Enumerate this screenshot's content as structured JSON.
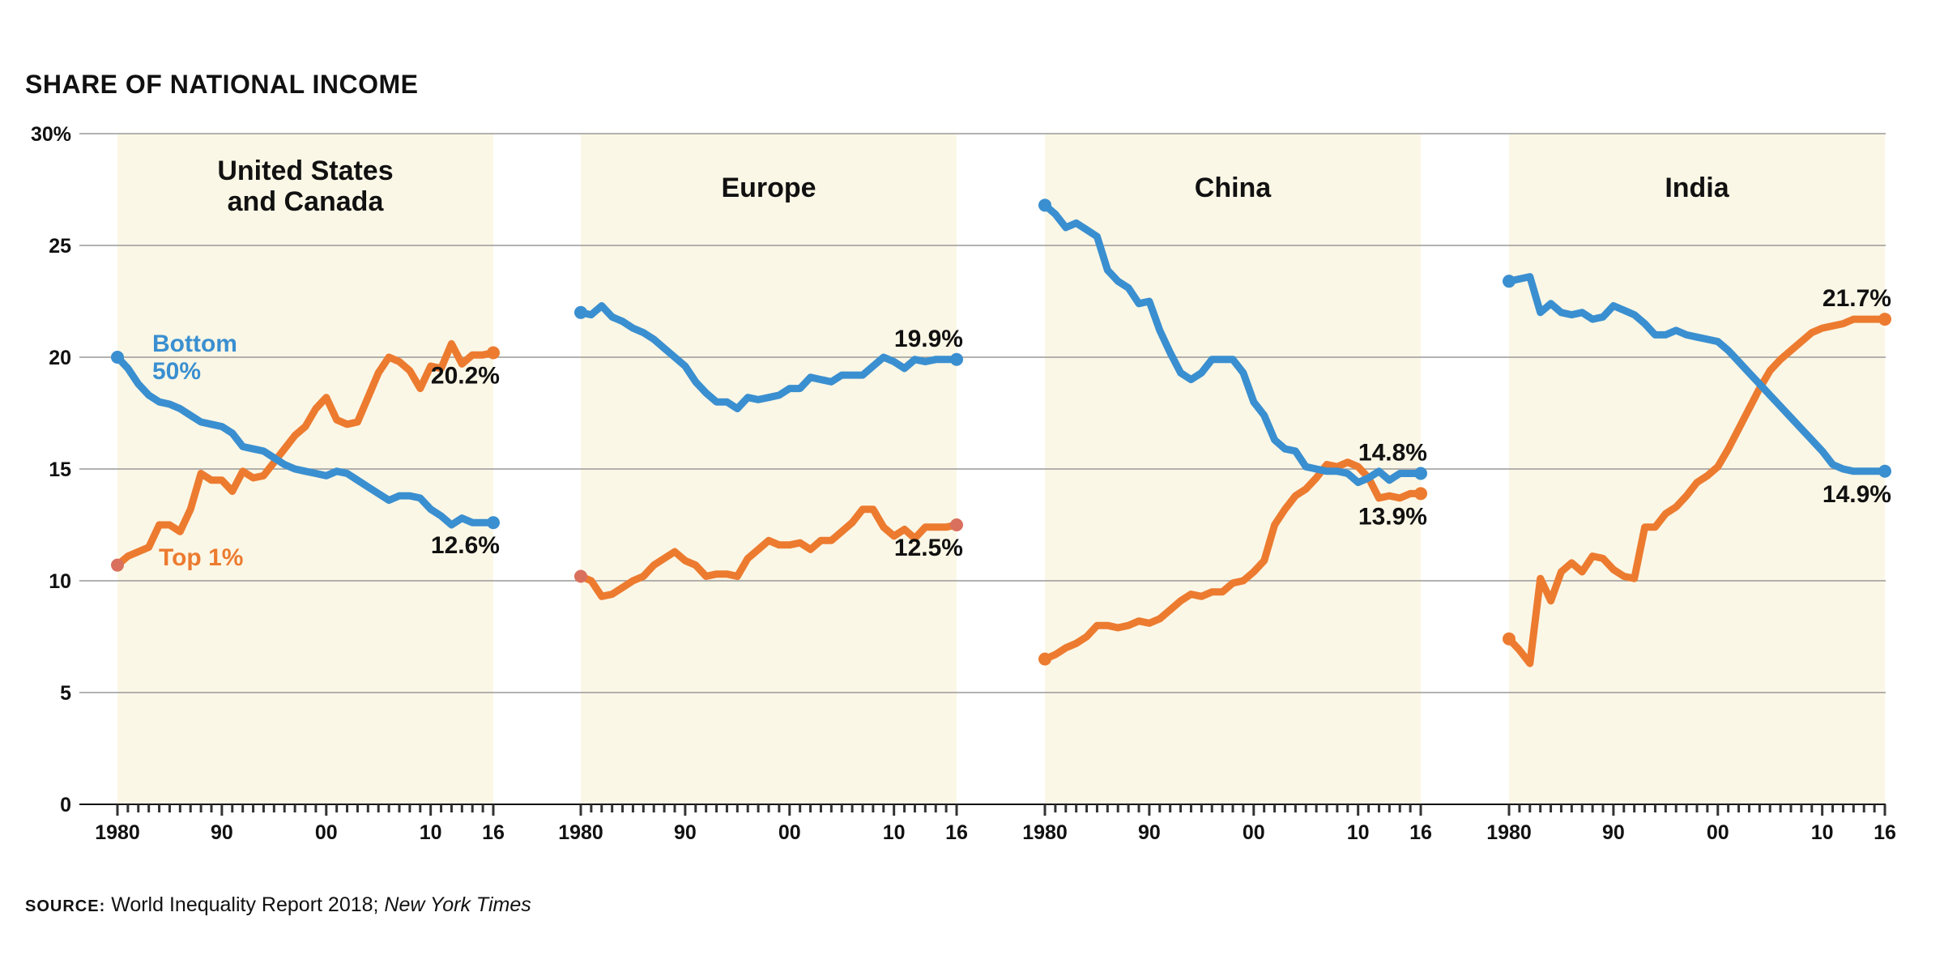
{
  "title": "SHARE OF NATIONAL INCOME",
  "source": {
    "label": "SOURCE:",
    "text": "World Inequality Report 2018; ",
    "italic": "New York Times"
  },
  "colors": {
    "bottom50": "#3a8fd0",
    "top1": "#ec7b30",
    "panel_bg": "#fbf7e6",
    "grid": "#999999",
    "start_dot": "#d9705e"
  },
  "chart_data": {
    "type": "line",
    "y_range": [
      0,
      30
    ],
    "y_ticks": [
      0,
      5,
      10,
      15,
      20,
      25,
      30
    ],
    "y_tick_labels": [
      "0",
      "5",
      "10",
      "15",
      "20",
      "25",
      "30%"
    ],
    "x_range": [
      1980,
      2016
    ],
    "x_ticks": [
      1980,
      1990,
      2000,
      2010,
      2016
    ],
    "x_tick_labels": [
      "1980",
      "90",
      "00",
      "10",
      "16"
    ],
    "grid": true,
    "panels": [
      {
        "name": "United States and Canada",
        "title_lines": [
          "United States",
          "and Canada"
        ],
        "series_labels": {
          "bottom50": [
            "Bottom",
            "50%"
          ],
          "top1": [
            "Top 1%"
          ]
        },
        "end_labels": {
          "top1": "20.2%",
          "bottom50": "12.6%"
        },
        "bottom50": [
          [
            1980,
            20.0
          ],
          [
            1981,
            19.5
          ],
          [
            1982,
            18.8
          ],
          [
            1983,
            18.3
          ],
          [
            1984,
            18.0
          ],
          [
            1985,
            17.9
          ],
          [
            1986,
            17.7
          ],
          [
            1987,
            17.4
          ],
          [
            1988,
            17.1
          ],
          [
            1989,
            17.0
          ],
          [
            1990,
            16.9
          ],
          [
            1991,
            16.6
          ],
          [
            1992,
            16.0
          ],
          [
            1993,
            15.9
          ],
          [
            1994,
            15.8
          ],
          [
            1995,
            15.5
          ],
          [
            1996,
            15.2
          ],
          [
            1997,
            15.0
          ],
          [
            1998,
            14.9
          ],
          [
            1999,
            14.8
          ],
          [
            2000,
            14.7
          ],
          [
            2001,
            14.9
          ],
          [
            2002,
            14.8
          ],
          [
            2003,
            14.5
          ],
          [
            2004,
            14.2
          ],
          [
            2005,
            13.9
          ],
          [
            2006,
            13.6
          ],
          [
            2007,
            13.8
          ],
          [
            2008,
            13.8
          ],
          [
            2009,
            13.7
          ],
          [
            2010,
            13.2
          ],
          [
            2011,
            12.9
          ],
          [
            2012,
            12.5
          ],
          [
            2013,
            12.8
          ],
          [
            2014,
            12.6
          ],
          [
            2015,
            12.6
          ],
          [
            2016,
            12.6
          ]
        ],
        "top1": [
          [
            1980,
            10.7
          ],
          [
            1981,
            11.1
          ],
          [
            1982,
            11.3
          ],
          [
            1983,
            11.5
          ],
          [
            1984,
            12.5
          ],
          [
            1985,
            12.5
          ],
          [
            1986,
            12.2
          ],
          [
            1987,
            13.2
          ],
          [
            1988,
            14.8
          ],
          [
            1989,
            14.5
          ],
          [
            1990,
            14.5
          ],
          [
            1991,
            14.0
          ],
          [
            1992,
            14.9
          ],
          [
            1993,
            14.6
          ],
          [
            1994,
            14.7
          ],
          [
            1995,
            15.3
          ],
          [
            1996,
            15.9
          ],
          [
            1997,
            16.5
          ],
          [
            1998,
            16.9
          ],
          [
            1999,
            17.7
          ],
          [
            2000,
            18.2
          ],
          [
            2001,
            17.2
          ],
          [
            2002,
            17.0
          ],
          [
            2003,
            17.1
          ],
          [
            2004,
            18.2
          ],
          [
            2005,
            19.3
          ],
          [
            2006,
            20.0
          ],
          [
            2007,
            19.8
          ],
          [
            2008,
            19.4
          ],
          [
            2009,
            18.6
          ],
          [
            2010,
            19.6
          ],
          [
            2011,
            19.5
          ],
          [
            2012,
            20.6
          ],
          [
            2013,
            19.7
          ],
          [
            2014,
            20.1
          ],
          [
            2015,
            20.1
          ],
          [
            2016,
            20.2
          ]
        ]
      },
      {
        "name": "Europe",
        "title_lines": [
          "Europe"
        ],
        "end_labels": {
          "top1": "12.5%",
          "bottom50": "19.9%"
        },
        "bottom50": [
          [
            1980,
            22.0
          ],
          [
            1981,
            21.9
          ],
          [
            1982,
            22.3
          ],
          [
            1983,
            21.8
          ],
          [
            1984,
            21.6
          ],
          [
            1985,
            21.3
          ],
          [
            1986,
            21.1
          ],
          [
            1987,
            20.8
          ],
          [
            1988,
            20.4
          ],
          [
            1989,
            20.0
          ],
          [
            1990,
            19.6
          ],
          [
            1991,
            18.9
          ],
          [
            1992,
            18.4
          ],
          [
            1993,
            18.0
          ],
          [
            1994,
            18.0
          ],
          [
            1995,
            17.7
          ],
          [
            1996,
            18.2
          ],
          [
            1997,
            18.1
          ],
          [
            1998,
            18.2
          ],
          [
            1999,
            18.3
          ],
          [
            2000,
            18.6
          ],
          [
            2001,
            18.6
          ],
          [
            2002,
            19.1
          ],
          [
            2003,
            19.0
          ],
          [
            2004,
            18.9
          ],
          [
            2005,
            19.2
          ],
          [
            2006,
            19.2
          ],
          [
            2007,
            19.2
          ],
          [
            2008,
            19.6
          ],
          [
            2009,
            20.0
          ],
          [
            2010,
            19.8
          ],
          [
            2011,
            19.5
          ],
          [
            2012,
            19.9
          ],
          [
            2013,
            19.8
          ],
          [
            2014,
            19.9
          ],
          [
            2015,
            19.9
          ],
          [
            2016,
            19.9
          ]
        ],
        "top1": [
          [
            1980,
            10.2
          ],
          [
            1981,
            10.0
          ],
          [
            1982,
            9.3
          ],
          [
            1983,
            9.4
          ],
          [
            1984,
            9.7
          ],
          [
            1985,
            10.0
          ],
          [
            1986,
            10.2
          ],
          [
            1987,
            10.7
          ],
          [
            1988,
            11.0
          ],
          [
            1989,
            11.3
          ],
          [
            1990,
            10.9
          ],
          [
            1991,
            10.7
          ],
          [
            1992,
            10.2
          ],
          [
            1993,
            10.3
          ],
          [
            1994,
            10.3
          ],
          [
            1995,
            10.2
          ],
          [
            1996,
            11.0
          ],
          [
            1997,
            11.4
          ],
          [
            1998,
            11.8
          ],
          [
            1999,
            11.6
          ],
          [
            2000,
            11.6
          ],
          [
            2001,
            11.7
          ],
          [
            2002,
            11.4
          ],
          [
            2003,
            11.8
          ],
          [
            2004,
            11.8
          ],
          [
            2005,
            12.2
          ],
          [
            2006,
            12.6
          ],
          [
            2007,
            13.2
          ],
          [
            2008,
            13.2
          ],
          [
            2009,
            12.4
          ],
          [
            2010,
            12.0
          ],
          [
            2011,
            12.3
          ],
          [
            2012,
            11.9
          ],
          [
            2013,
            12.4
          ],
          [
            2014,
            12.4
          ],
          [
            2015,
            12.4
          ],
          [
            2016,
            12.5
          ]
        ]
      },
      {
        "name": "China",
        "title_lines": [
          "China"
        ],
        "end_labels": {
          "top1": "13.9%",
          "bottom50": "14.8%"
        },
        "bottom50": [
          [
            1980,
            26.8
          ],
          [
            1981,
            26.4
          ],
          [
            1982,
            25.8
          ],
          [
            1983,
            26.0
          ],
          [
            1984,
            25.7
          ],
          [
            1985,
            25.4
          ],
          [
            1986,
            23.9
          ],
          [
            1987,
            23.4
          ],
          [
            1988,
            23.1
          ],
          [
            1989,
            22.4
          ],
          [
            1990,
            22.5
          ],
          [
            1991,
            21.2
          ],
          [
            1992,
            20.2
          ],
          [
            1993,
            19.3
          ],
          [
            1994,
            19.0
          ],
          [
            1995,
            19.3
          ],
          [
            1996,
            19.9
          ],
          [
            1997,
            19.9
          ],
          [
            1998,
            19.9
          ],
          [
            1999,
            19.3
          ],
          [
            2000,
            18.0
          ],
          [
            2001,
            17.4
          ],
          [
            2002,
            16.3
          ],
          [
            2003,
            15.9
          ],
          [
            2004,
            15.8
          ],
          [
            2005,
            15.1
          ],
          [
            2006,
            15.0
          ],
          [
            2007,
            14.9
          ],
          [
            2008,
            14.9
          ],
          [
            2009,
            14.8
          ],
          [
            2010,
            14.4
          ],
          [
            2011,
            14.6
          ],
          [
            2012,
            14.9
          ],
          [
            2013,
            14.5
          ],
          [
            2014,
            14.8
          ],
          [
            2015,
            14.8
          ],
          [
            2016,
            14.8
          ]
        ],
        "top1": [
          [
            1980,
            6.5
          ],
          [
            1981,
            6.7
          ],
          [
            1982,
            7.0
          ],
          [
            1983,
            7.2
          ],
          [
            1984,
            7.5
          ],
          [
            1985,
            8.0
          ],
          [
            1986,
            8.0
          ],
          [
            1987,
            7.9
          ],
          [
            1988,
            8.0
          ],
          [
            1989,
            8.2
          ],
          [
            1990,
            8.1
          ],
          [
            1991,
            8.3
          ],
          [
            1992,
            8.7
          ],
          [
            1993,
            9.1
          ],
          [
            1994,
            9.4
          ],
          [
            1995,
            9.3
          ],
          [
            1996,
            9.5
          ],
          [
            1997,
            9.5
          ],
          [
            1998,
            9.9
          ],
          [
            1999,
            10.0
          ],
          [
            2000,
            10.4
          ],
          [
            2001,
            10.9
          ],
          [
            2002,
            12.5
          ],
          [
            2003,
            13.2
          ],
          [
            2004,
            13.8
          ],
          [
            2005,
            14.1
          ],
          [
            2006,
            14.6
          ],
          [
            2007,
            15.2
          ],
          [
            2008,
            15.1
          ],
          [
            2009,
            15.3
          ],
          [
            2010,
            15.1
          ],
          [
            2011,
            14.6
          ],
          [
            2012,
            13.7
          ],
          [
            2013,
            13.8
          ],
          [
            2014,
            13.7
          ],
          [
            2015,
            13.9
          ],
          [
            2016,
            13.9
          ]
        ]
      },
      {
        "name": "India",
        "title_lines": [
          "India"
        ],
        "end_labels": {
          "top1": "21.7%",
          "bottom50": "14.9%"
        },
        "bottom50": [
          [
            1980,
            23.4
          ],
          [
            1981,
            23.5
          ],
          [
            1982,
            23.6
          ],
          [
            1983,
            22.0
          ],
          [
            1984,
            22.4
          ],
          [
            1985,
            22.0
          ],
          [
            1986,
            21.9
          ],
          [
            1987,
            22.0
          ],
          [
            1988,
            21.7
          ],
          [
            1989,
            21.8
          ],
          [
            1990,
            22.3
          ],
          [
            1991,
            22.1
          ],
          [
            1992,
            21.9
          ],
          [
            1993,
            21.5
          ],
          [
            1994,
            21.0
          ],
          [
            1995,
            21.0
          ],
          [
            1996,
            21.2
          ],
          [
            1997,
            21.0
          ],
          [
            1998,
            20.9
          ],
          [
            1999,
            20.8
          ],
          [
            2000,
            20.7
          ],
          [
            2001,
            20.3
          ],
          [
            2002,
            19.8
          ],
          [
            2003,
            19.3
          ],
          [
            2004,
            18.8
          ],
          [
            2005,
            18.3
          ],
          [
            2006,
            17.8
          ],
          [
            2007,
            17.3
          ],
          [
            2008,
            16.8
          ],
          [
            2009,
            16.3
          ],
          [
            2010,
            15.8
          ],
          [
            2011,
            15.2
          ],
          [
            2012,
            15.0
          ],
          [
            2013,
            14.9
          ],
          [
            2014,
            14.9
          ],
          [
            2015,
            14.9
          ],
          [
            2016,
            14.9
          ]
        ],
        "top1": [
          [
            1980,
            7.4
          ],
          [
            1981,
            6.9
          ],
          [
            1982,
            6.3
          ],
          [
            1983,
            10.1
          ],
          [
            1984,
            9.1
          ],
          [
            1985,
            10.4
          ],
          [
            1986,
            10.8
          ],
          [
            1987,
            10.4
          ],
          [
            1988,
            11.1
          ],
          [
            1989,
            11.0
          ],
          [
            1990,
            10.5
          ],
          [
            1991,
            10.2
          ],
          [
            1992,
            10.1
          ],
          [
            1993,
            12.4
          ],
          [
            1994,
            12.4
          ],
          [
            1995,
            13.0
          ],
          [
            1996,
            13.3
          ],
          [
            1997,
            13.8
          ],
          [
            1998,
            14.4
          ],
          [
            1999,
            14.7
          ],
          [
            2000,
            15.1
          ],
          [
            2001,
            15.9
          ],
          [
            2002,
            16.8
          ],
          [
            2003,
            17.7
          ],
          [
            2004,
            18.6
          ],
          [
            2005,
            19.4
          ],
          [
            2006,
            19.9
          ],
          [
            2007,
            20.3
          ],
          [
            2008,
            20.7
          ],
          [
            2009,
            21.1
          ],
          [
            2010,
            21.3
          ],
          [
            2011,
            21.4
          ],
          [
            2012,
            21.5
          ],
          [
            2013,
            21.7
          ],
          [
            2014,
            21.7
          ],
          [
            2015,
            21.7
          ],
          [
            2016,
            21.7
          ]
        ]
      }
    ]
  }
}
